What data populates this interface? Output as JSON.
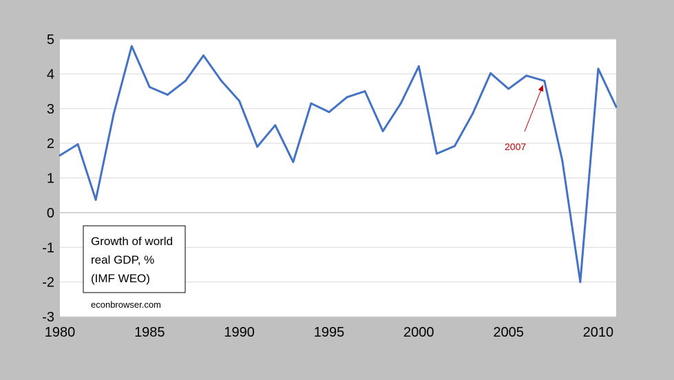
{
  "chart_data": {
    "type": "line",
    "colors": {
      "line": "#4472c4",
      "annotation": "#c00000",
      "background": "#c0c0c0",
      "plot": "#ffffff",
      "grid": "#d9d9d9"
    },
    "x": [
      1980,
      1981,
      1982,
      1983,
      1984,
      1985,
      1986,
      1987,
      1988,
      1989,
      1990,
      1991,
      1992,
      1993,
      1994,
      1995,
      1996,
      1997,
      1998,
      1999,
      2000,
      2001,
      2002,
      2003,
      2004,
      2005,
      2006,
      2007,
      2008,
      2009,
      2010,
      2011
    ],
    "series": [
      {
        "values": [
          1.65,
          1.97,
          0.37,
          2.85,
          4.8,
          3.62,
          3.4,
          3.8,
          4.53,
          3.8,
          3.22,
          1.9,
          2.52,
          1.46,
          3.15,
          2.9,
          3.33,
          3.5,
          2.35,
          3.15,
          4.22,
          1.7,
          1.92,
          2.85,
          4.02,
          3.57,
          3.95,
          3.8,
          1.5,
          -2.0,
          4.15,
          3.05
        ]
      }
    ],
    "xlim": [
      1980,
      2011
    ],
    "ylim": [
      -3,
      5
    ],
    "xticks": [
      1980,
      1985,
      1990,
      1995,
      2000,
      2005,
      2010
    ],
    "yticks": [
      5,
      4,
      3,
      2,
      1,
      0,
      -1,
      -2,
      -3
    ],
    "grid": true,
    "legend_box": {
      "lines": [
        "Growth of world",
        "real GDP, %",
        "(IMF WEO)"
      ],
      "position": "bottom-left"
    },
    "source": "econbrowser.com",
    "annotation": {
      "text": "2007",
      "x": 2007,
      "y": 3.8
    }
  }
}
